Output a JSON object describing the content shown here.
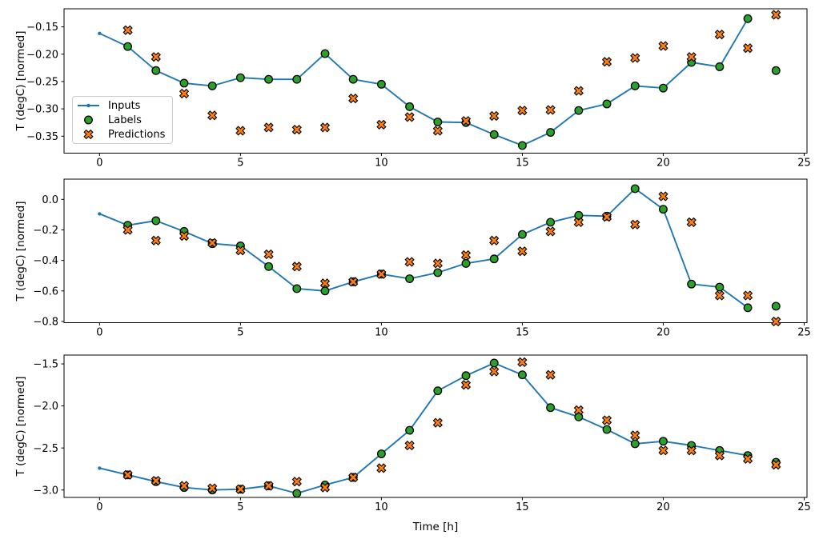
{
  "figure": {
    "xlabel": "Time [h]",
    "ylabel": "T (degC) [normed]",
    "xlim": [
      -1.26,
      25.1
    ],
    "xtick_values": [
      0,
      5,
      10,
      15,
      20,
      25
    ],
    "xtick_labels": [
      "0",
      "5",
      "10",
      "15",
      "20",
      "25"
    ],
    "legend": {
      "items": [
        {
          "label": "Inputs"
        },
        {
          "label": "Labels"
        },
        {
          "label": "Predictions"
        }
      ]
    },
    "colors": {
      "inputs_line": "#1f77b4",
      "labels_marker": "#2ca02c",
      "predictions_marker": "#ff7f0e",
      "marker_edge": "#000000",
      "spine": "#000000",
      "text": "#000000",
      "legend_border": "#cccccc",
      "background": "#ffffff"
    }
  },
  "chart_data": [
    {
      "type": "line",
      "title": "",
      "ylabel": "T (degC) [normed]",
      "ylim": [
        -0.381,
        -0.117
      ],
      "ytick_values": [
        -0.15,
        -0.2,
        -0.25,
        -0.3,
        -0.35
      ],
      "ytick_labels": [
        "−0.15",
        "−0.20",
        "−0.25",
        "−0.30",
        "−0.35"
      ],
      "series": [
        {
          "name": "Inputs",
          "marker": "dot-line",
          "x": [
            0,
            1,
            2,
            3,
            4,
            5,
            6,
            7,
            8,
            9,
            10,
            11,
            12,
            13,
            14,
            15,
            16,
            17,
            18,
            19,
            20,
            21,
            22,
            23
          ],
          "y": [
            -0.162,
            -0.186,
            -0.23,
            -0.253,
            -0.258,
            -0.243,
            -0.246,
            -0.246,
            -0.199,
            -0.246,
            -0.255,
            -0.296,
            -0.324,
            -0.325,
            -0.347,
            -0.367,
            -0.343,
            -0.303,
            -0.291,
            -0.258,
            -0.262,
            -0.215,
            -0.223,
            -0.135
          ]
        },
        {
          "name": "Labels",
          "marker": "circle",
          "x": [
            1,
            2,
            3,
            4,
            5,
            6,
            7,
            8,
            9,
            10,
            11,
            12,
            13,
            14,
            15,
            16,
            17,
            18,
            19,
            20,
            21,
            22,
            23,
            24
          ],
          "y": [
            -0.186,
            -0.23,
            -0.253,
            -0.258,
            -0.243,
            -0.246,
            -0.246,
            -0.199,
            -0.246,
            -0.255,
            -0.296,
            -0.324,
            -0.325,
            -0.347,
            -0.367,
            -0.343,
            -0.303,
            -0.291,
            -0.258,
            -0.262,
            -0.215,
            -0.223,
            -0.135,
            -0.23
          ]
        },
        {
          "name": "Predictions",
          "marker": "X",
          "x": [
            1,
            2,
            3,
            4,
            5,
            6,
            7,
            8,
            9,
            10,
            11,
            12,
            13,
            14,
            15,
            16,
            17,
            18,
            19,
            20,
            21,
            22,
            23,
            24
          ],
          "y": [
            -0.156,
            -0.205,
            -0.272,
            -0.312,
            -0.34,
            -0.334,
            -0.338,
            -0.334,
            -0.281,
            -0.329,
            -0.315,
            -0.34,
            -0.322,
            -0.313,
            -0.303,
            -0.302,
            -0.267,
            -0.214,
            -0.207,
            -0.185,
            -0.205,
            -0.164,
            -0.189,
            -0.128
          ]
        }
      ]
    },
    {
      "type": "line",
      "title": "",
      "ylabel": "T (degC) [normed]",
      "ylim": [
        -0.808,
        0.1325
      ],
      "ytick_values": [
        0.0,
        -0.2,
        -0.4,
        -0.6,
        -0.8
      ],
      "ytick_labels": [
        "0.0",
        "−0.2",
        "−0.4",
        "−0.6",
        "−0.8"
      ],
      "series": [
        {
          "name": "Inputs",
          "marker": "dot-line",
          "x": [
            0,
            1,
            2,
            3,
            4,
            5,
            6,
            7,
            8,
            9,
            10,
            11,
            12,
            13,
            14,
            15,
            16,
            17,
            18,
            19,
            20,
            21,
            22,
            23
          ],
          "y": [
            -0.095,
            -0.17,
            -0.14,
            -0.21,
            -0.29,
            -0.305,
            -0.44,
            -0.585,
            -0.6,
            -0.54,
            -0.49,
            -0.52,
            -0.48,
            -0.42,
            -0.39,
            -0.23,
            -0.15,
            -0.105,
            -0.11,
            0.07,
            -0.065,
            -0.555,
            -0.575,
            -0.71
          ]
        },
        {
          "name": "Labels",
          "marker": "circle",
          "x": [
            1,
            2,
            3,
            4,
            5,
            6,
            7,
            8,
            9,
            10,
            11,
            12,
            13,
            14,
            15,
            16,
            17,
            18,
            19,
            20,
            21,
            22,
            23,
            24
          ],
          "y": [
            -0.17,
            -0.14,
            -0.21,
            -0.29,
            -0.305,
            -0.44,
            -0.585,
            -0.6,
            -0.54,
            -0.49,
            -0.52,
            -0.48,
            -0.42,
            -0.39,
            -0.23,
            -0.15,
            -0.105,
            -0.11,
            0.07,
            -0.065,
            -0.555,
            -0.575,
            -0.71,
            -0.7
          ]
        },
        {
          "name": "Predictions",
          "marker": "X",
          "x": [
            1,
            2,
            3,
            4,
            5,
            6,
            7,
            8,
            9,
            10,
            11,
            12,
            13,
            14,
            15,
            16,
            17,
            18,
            19,
            20,
            21,
            22,
            23,
            24
          ],
          "y": [
            -0.2,
            -0.27,
            -0.24,
            -0.285,
            -0.335,
            -0.36,
            -0.44,
            -0.55,
            -0.54,
            -0.49,
            -0.41,
            -0.42,
            -0.365,
            -0.27,
            -0.34,
            -0.21,
            -0.15,
            -0.115,
            -0.165,
            0.02,
            -0.15,
            -0.63,
            -0.63,
            -0.8
          ]
        }
      ]
    },
    {
      "type": "line",
      "title": "",
      "ylabel": "T (degC) [normed]",
      "ylim": [
        -3.088,
        -1.395
      ],
      "ytick_values": [
        -1.5,
        -2.0,
        -2.5,
        -3.0
      ],
      "ytick_labels": [
        "−1.5",
        "−2.0",
        "−2.5",
        "−3.0"
      ],
      "series": [
        {
          "name": "Inputs",
          "marker": "dot-line",
          "x": [
            0,
            1,
            2,
            3,
            4,
            5,
            6,
            7,
            8,
            9,
            10,
            11,
            12,
            13,
            14,
            15,
            16,
            17,
            18,
            19,
            20,
            21,
            22,
            23
          ],
          "y": [
            -2.74,
            -2.82,
            -2.9,
            -2.97,
            -3.0,
            -2.99,
            -2.95,
            -3.04,
            -2.94,
            -2.85,
            -2.57,
            -2.29,
            -1.82,
            -1.64,
            -1.49,
            -1.63,
            -2.02,
            -2.13,
            -2.28,
            -2.45,
            -2.42,
            -2.47,
            -2.53,
            -2.59
          ]
        },
        {
          "name": "Labels",
          "marker": "circle",
          "x": [
            1,
            2,
            3,
            4,
            5,
            6,
            7,
            8,
            9,
            10,
            11,
            12,
            13,
            14,
            15,
            16,
            17,
            18,
            19,
            20,
            21,
            22,
            23,
            24
          ],
          "y": [
            -2.82,
            -2.9,
            -2.97,
            -3.0,
            -2.99,
            -2.95,
            -3.04,
            -2.94,
            -2.85,
            -2.57,
            -2.29,
            -1.82,
            -1.64,
            -1.49,
            -1.63,
            -2.02,
            -2.13,
            -2.28,
            -2.45,
            -2.42,
            -2.47,
            -2.53,
            -2.59,
            -2.67
          ]
        },
        {
          "name": "Predictions",
          "marker": "X",
          "x": [
            1,
            2,
            3,
            4,
            5,
            6,
            7,
            8,
            9,
            10,
            11,
            12,
            13,
            14,
            15,
            16,
            17,
            18,
            19,
            20,
            21,
            22,
            23,
            24
          ],
          "y": [
            -2.82,
            -2.89,
            -2.95,
            -2.98,
            -2.99,
            -2.95,
            -2.9,
            -2.97,
            -2.85,
            -2.74,
            -2.47,
            -2.2,
            -1.75,
            -1.59,
            -1.48,
            -1.63,
            -2.05,
            -2.17,
            -2.35,
            -2.53,
            -2.53,
            -2.59,
            -2.63,
            -2.7
          ]
        }
      ]
    }
  ]
}
